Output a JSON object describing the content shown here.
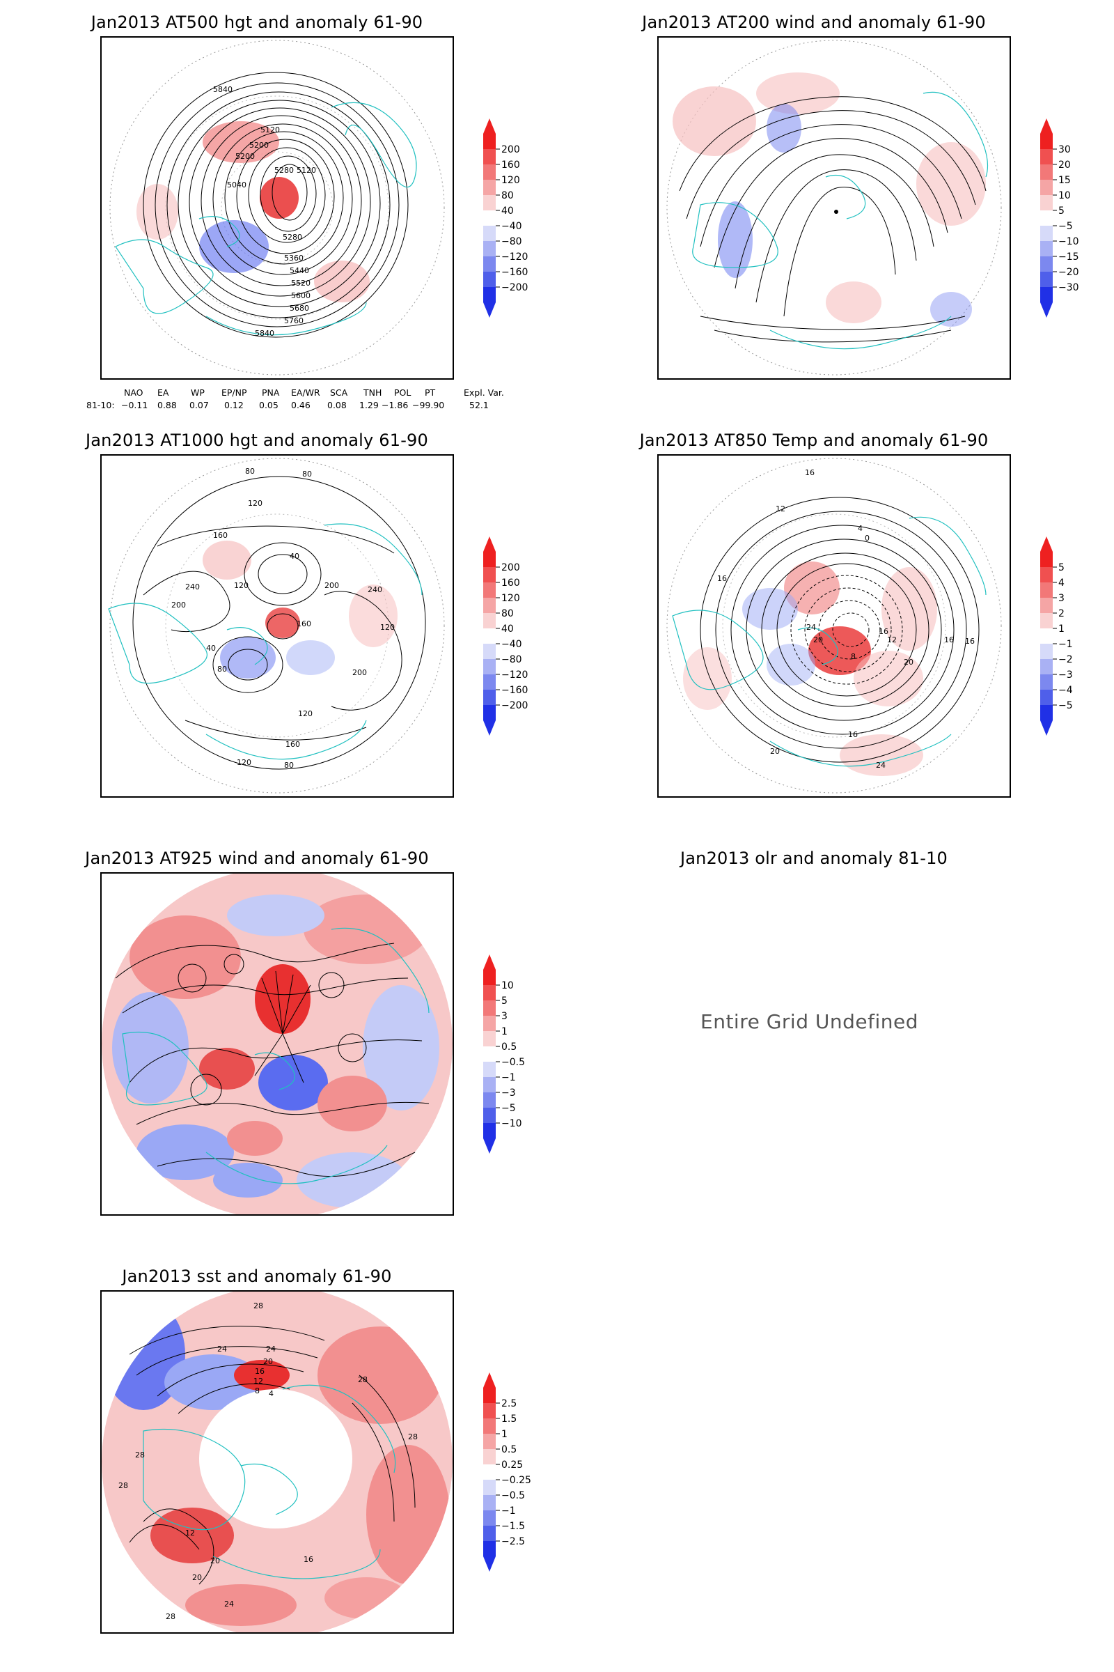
{
  "panels": [
    {
      "id": "at500",
      "title": "Jan2013 AT500 hgt and anomaly 61-90",
      "contour_labels": [
        "5840",
        "5120",
        "5200",
        "5280",
        "5120",
        "5200",
        "5040",
        "5280",
        "5360",
        "5440",
        "5520",
        "5600",
        "5680",
        "5760",
        "5840"
      ],
      "colorbar": [
        "200",
        "160",
        "120",
        "80",
        "40",
        "−40",
        "−80",
        "−120",
        "−160",
        "−200"
      ]
    },
    {
      "id": "at200",
      "title": "Jan2013 AT200 wind and anomaly 61-90",
      "colorbar": [
        "30",
        "20",
        "15",
        "10",
        "5",
        "−5",
        "−10",
        "−15",
        "−20",
        "−30"
      ]
    },
    {
      "id": "at1000",
      "title": "Jan2013 AT1000 hgt and anomaly 61-90",
      "contour_labels": [
        "80",
        "80",
        "120",
        "160",
        "40",
        "240",
        "200",
        "120",
        "200",
        "240",
        "40",
        "120",
        "160",
        "200",
        "120",
        "160",
        "80",
        "120",
        "80"
      ],
      "colorbar": [
        "200",
        "160",
        "120",
        "80",
        "40",
        "−40",
        "−80",
        "−120",
        "−160",
        "−200"
      ]
    },
    {
      "id": "at850",
      "title": "Jan2013 AT850 Temp and anomaly 61-90",
      "contour_labels": [
        "16",
        "12",
        "4",
        "0",
        "16",
        "24",
        "20",
        "16",
        "8",
        "16",
        "12",
        "16",
        "20",
        "16",
        "20",
        "24"
      ],
      "colorbar": [
        "5",
        "4",
        "3",
        "2",
        "1",
        "−1",
        "−2",
        "−3",
        "−4",
        "−5"
      ]
    },
    {
      "id": "at925",
      "title": "Jan2013 AT925 wind and anomaly 61-90",
      "colorbar": [
        "10",
        "5",
        "3",
        "1",
        "0.5",
        "−0.5",
        "−1",
        "−3",
        "−5",
        "−10"
      ]
    },
    {
      "id": "olr",
      "title": "Jan2013 olr and anomaly 81-10",
      "message": "Entire Grid Undefined"
    },
    {
      "id": "sst",
      "title": "Jan2013 sst and anomaly 61-90",
      "contour_labels": [
        "28",
        "24",
        "24",
        "20",
        "16",
        "12",
        "8",
        "4",
        "28",
        "28",
        "20",
        "12",
        "28",
        "24",
        "20",
        "16",
        "28",
        "28"
      ],
      "colorbar": [
        "2.5",
        "1.5",
        "1",
        "0.5",
        "0.25",
        "−0.25",
        "−0.5",
        "−1",
        "−1.5",
        "−2.5"
      ]
    }
  ],
  "teleconnection_indices": {
    "headers": [
      "NAO",
      "EA",
      "WP",
      "EP/NP",
      "PNA",
      "EA/WR",
      "SCA",
      "TNH",
      "POL",
      "PT",
      "Expl. Var."
    ],
    "row_label": "81-10:",
    "values": [
      "−0.11",
      "0.88",
      "0.07",
      "0.12",
      "0.05",
      "0.46",
      "0.08",
      "1.29",
      "−1.86",
      "−99.90",
      "52.1"
    ]
  },
  "colors": {
    "positive": "#ee2020",
    "negative": "#2030f0",
    "coastline": "#20c0c0",
    "contour": "#000000"
  }
}
